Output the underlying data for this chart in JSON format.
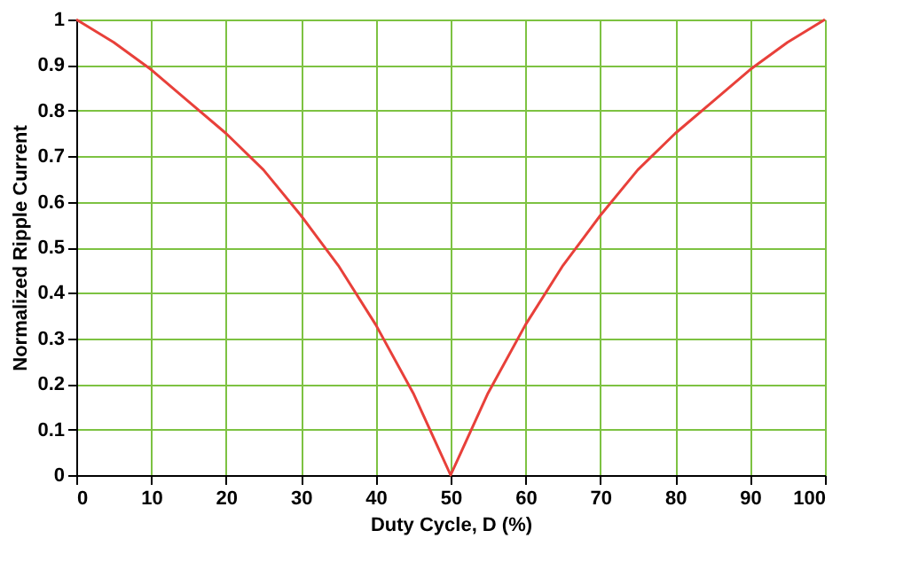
{
  "chart_data": {
    "type": "line",
    "xlabel": "Duty Cycle, D (%)",
    "ylabel": "Normalized Ripple Current",
    "x": [
      0,
      5,
      10,
      15,
      20,
      25,
      30,
      35,
      40,
      45,
      50,
      55,
      60,
      65,
      70,
      75,
      80,
      85,
      90,
      95,
      100
    ],
    "series": [
      {
        "color": "#e8403a",
        "values": [
          1,
          0.95,
          0.89,
          0.82,
          0.75,
          0.67,
          0.57,
          0.46,
          0.33,
          0.18,
          0,
          0.18,
          0.33,
          0.46,
          0.57,
          0.67,
          0.75,
          0.82,
          0.89,
          0.95,
          1
        ]
      }
    ],
    "xlim": [
      0,
      100
    ],
    "xticks": [
      0,
      10,
      20,
      30,
      40,
      50,
      60,
      70,
      80,
      90,
      100
    ],
    "ylim": [
      0,
      1
    ],
    "yticks": [
      0,
      0.1,
      0.2,
      0.3,
      0.4,
      0.5,
      0.6,
      0.7,
      0.8,
      0.9,
      1
    ],
    "grid": true,
    "marker": "none",
    "line_style": "solid"
  }
}
